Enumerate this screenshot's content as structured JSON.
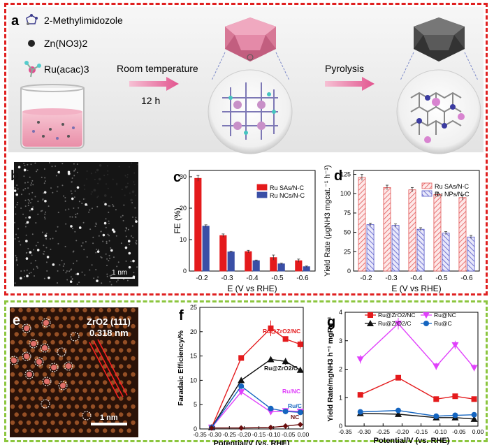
{
  "panels": {
    "a": "a",
    "b": "b",
    "c": "c",
    "d": "d",
    "e": "e",
    "f": "f",
    "g": "g"
  },
  "schematic": {
    "legend": [
      "2-Methylimidozole",
      "Zn(NO3)2",
      "Ru(acac)3"
    ],
    "step1": "Room temperature",
    "step1_time": "12 h",
    "step2": "Pyrolysis"
  },
  "micrograph_b": {
    "scale": "1 nm"
  },
  "micrograph_e": {
    "title": "ZrO2 (111)",
    "spacing": "0.318 nm",
    "scale": "1 nm"
  },
  "colors": {
    "red_border": "#e02020",
    "green_border": "#8cc63f",
    "red": "#e41a1c",
    "blue": "#3a4fa6",
    "magenta": "#e040fb",
    "black": "#111111",
    "blue_dot": "#1565c0",
    "darkred": "#6b0f0f"
  },
  "chart_data": [
    {
      "id": "c",
      "type": "bar",
      "title": "",
      "xlabel": "E (V vs RHE)",
      "ylabel": "FE (%)",
      "categories": [
        "-0.2",
        "-0.3",
        "-0.4",
        "-0.5",
        "-0.6"
      ],
      "ylim": [
        0,
        32
      ],
      "yticks": [
        0,
        10,
        20,
        30
      ],
      "series": [
        {
          "name": "Ru SAs/N-C",
          "values": [
            29.5,
            11.3,
            6.2,
            4.3,
            3.3
          ],
          "errors": [
            0.9,
            0.5,
            0.4,
            0.8,
            0.5
          ]
        },
        {
          "name": "Ru NCs/N-C",
          "values": [
            14.3,
            6.1,
            3.3,
            2.3,
            1.4
          ],
          "errors": [
            0.4,
            0.2,
            0.2,
            0.2,
            0.2
          ]
        }
      ]
    },
    {
      "id": "d",
      "type": "bar",
      "xlabel": "E (V vs RHE)",
      "ylabel": "Yield Rate (μgNH3 mgcat.⁻¹ h⁻¹)",
      "categories": [
        "-0.2",
        "-0.3",
        "-0.4",
        "-0.5",
        "-0.6"
      ],
      "ylim": [
        0,
        130
      ],
      "yticks": [
        0,
        25,
        50,
        75,
        100,
        125
      ],
      "series": [
        {
          "name": "Ru SAs/N-C",
          "values": [
            121,
            108,
            105,
            99,
            95
          ],
          "errors": [
            4,
            3,
            3,
            3,
            3
          ]
        },
        {
          "name": "Ru NPs/N-C",
          "values": [
            60,
            59,
            54,
            49,
            44
          ],
          "errors": [
            2,
            2,
            2,
            2,
            2
          ]
        }
      ]
    },
    {
      "id": "f",
      "type": "line",
      "xlabel": "Potential/V (vs. RHE)",
      "ylabel": "Faradaic Efficiency/%",
      "xlim": [
        -0.35,
        0.0
      ],
      "ylim": [
        0,
        25
      ],
      "xticks": [
        "-0.35",
        "-0.30",
        "-0.25",
        "-0.20",
        "-0.15",
        "-0.10",
        "-0.05",
        "0.00"
      ],
      "x": [
        -0.31,
        -0.21,
        -0.11,
        -0.06,
        -0.01
      ],
      "series": [
        {
          "name": "Ru@ZrO2/NC",
          "values": [
            0.3,
            14.6,
            20.7,
            18.5,
            17.4
          ],
          "errors": [
            0.2,
            0.5,
            1.6,
            0.5,
            0.9
          ],
          "marker": "square"
        },
        {
          "name": "Ru@ZrO2/C",
          "values": [
            0.3,
            10.0,
            14.3,
            13.9,
            12.1
          ],
          "errors": [
            0.2,
            0.4,
            0.5,
            0.7,
            0.3
          ],
          "marker": "triangle"
        },
        {
          "name": "Ru/NC",
          "values": [
            0.3,
            7.6,
            3.5,
            3.7,
            3.6
          ],
          "errors": [
            0.1,
            0.6,
            0.3,
            0.3,
            0.3
          ],
          "marker": "tri-down"
        },
        {
          "name": "Ru/C",
          "values": [
            0.3,
            8.8,
            4.2,
            3.6,
            3.4
          ],
          "errors": [
            0.1,
            0.5,
            0.3,
            0.3,
            0.2
          ],
          "marker": "circle"
        },
        {
          "name": "NC",
          "values": [
            0.2,
            0.2,
            0.3,
            0.6,
            0.9
          ],
          "errors": [
            0.1,
            0.1,
            0.1,
            0.1,
            0.1
          ],
          "marker": "diamond"
        }
      ]
    },
    {
      "id": "g",
      "type": "line",
      "xlabel": "Potential/V (vs. RHE)",
      "ylabel": "Yield Rate/mgNH3 h⁻¹ mgRu⁻¹",
      "xlim": [
        -0.35,
        0.0
      ],
      "ylim": [
        0,
        4
      ],
      "xticks": [
        "-0.35",
        "-0.30",
        "-0.25",
        "-0.20",
        "-0.15",
        "-0.10",
        "-0.05",
        "0.00"
      ],
      "x": [
        -0.31,
        -0.21,
        -0.11,
        -0.06,
        -0.01
      ],
      "series": [
        {
          "name": "Ru@ZrO2/NC",
          "values": [
            1.1,
            1.7,
            0.95,
            1.05,
            0.95
          ],
          "errors": [
            0.03,
            0.05,
            0.03,
            0.03,
            0.03
          ],
          "marker": "square"
        },
        {
          "name": "Ru@NC",
          "values": [
            2.35,
            3.6,
            2.1,
            2.85,
            2.05
          ],
          "errors": [
            0.15,
            0.2,
            0.12,
            0.15,
            0.12
          ],
          "marker": "tri-down"
        },
        {
          "name": "Ru@ZrO2/C",
          "values": [
            0.45,
            0.42,
            0.3,
            0.3,
            0.25
          ],
          "errors": [
            0.03,
            0.03,
            0.03,
            0.03,
            0.03
          ],
          "marker": "triangle"
        },
        {
          "name": "Ru@C",
          "values": [
            0.5,
            0.55,
            0.35,
            0.38,
            0.4
          ],
          "errors": [
            0.03,
            0.03,
            0.03,
            0.03,
            0.03
          ],
          "marker": "circle"
        }
      ]
    }
  ]
}
